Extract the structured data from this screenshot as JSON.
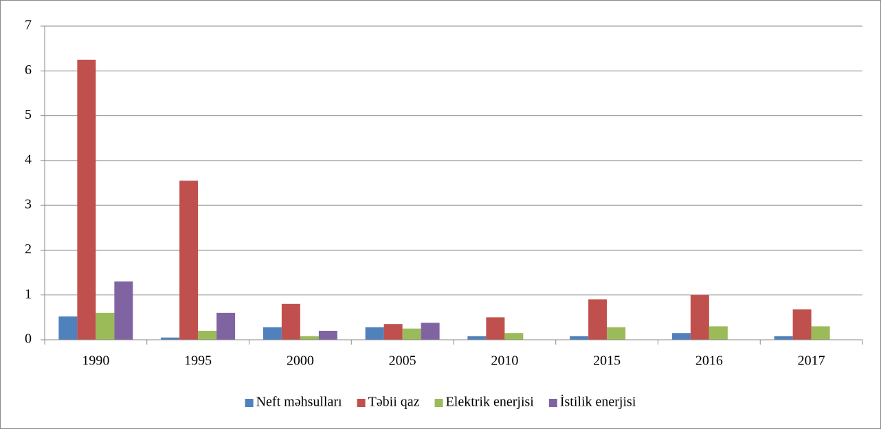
{
  "chart_data": {
    "type": "bar",
    "categories": [
      "1990",
      "1995",
      "2000",
      "2005",
      "2010",
      "2015",
      "2016",
      "2017"
    ],
    "series": [
      {
        "name": "Neft məhsulları",
        "color": "#4f81bd",
        "values": [
          0.52,
          0.05,
          0.28,
          0.28,
          0.08,
          0.08,
          0.15,
          0.08
        ]
      },
      {
        "name": "Təbii qaz",
        "color": "#c0504d",
        "values": [
          6.25,
          3.55,
          0.8,
          0.35,
          0.5,
          0.9,
          1.0,
          0.68
        ]
      },
      {
        "name": "Elektrik enerjisi",
        "color": "#9bbb59",
        "values": [
          0.6,
          0.2,
          0.08,
          0.25,
          0.15,
          0.28,
          0.3,
          0.3
        ]
      },
      {
        "name": "İstilik enerjisi",
        "color": "#8064a2",
        "values": [
          1.3,
          0.6,
          0.2,
          0.38,
          0,
          0,
          0,
          0
        ]
      }
    ],
    "ylim": [
      0,
      7
    ],
    "yticks": [
      0,
      1,
      2,
      3,
      4,
      5,
      6,
      7
    ],
    "grid": true,
    "legend": "bottom"
  }
}
